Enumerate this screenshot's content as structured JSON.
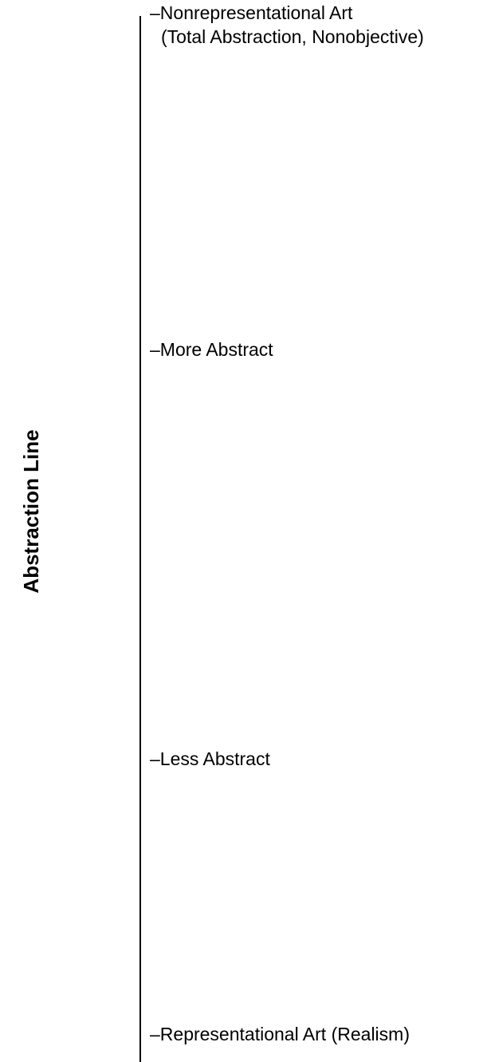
{
  "diagram": {
    "title": "Abstraction Line",
    "levels": [
      {
        "line1": "–Nonrepresentational Art",
        "line2": "(Total Abstraction, Nonobjective)"
      },
      {
        "label": "–More Abstract"
      },
      {
        "label": "–Less Abstract"
      },
      {
        "label": "–Representational Art (Realism)"
      }
    ]
  }
}
